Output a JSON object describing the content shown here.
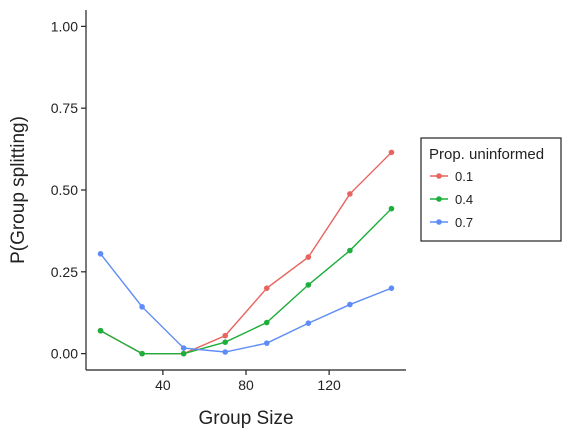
{
  "chart_data": {
    "type": "line",
    "xlabel": "Group Size",
    "ylabel": "P(Group splitting)",
    "xlim": [
      3,
      157
    ],
    "ylim": [
      -0.05,
      1.05
    ],
    "x_ticks": [
      40,
      80,
      120
    ],
    "y_ticks": [
      0.0,
      0.25,
      0.5,
      0.75,
      1.0
    ],
    "y_tick_labels": [
      "0.00",
      "0.25",
      "0.50",
      "0.75",
      "1.00"
    ],
    "x": [
      10,
      30,
      50,
      70,
      90,
      110,
      130,
      150
    ],
    "legend": {
      "title": "Prop. uninformed",
      "placement": "right"
    },
    "series": [
      {
        "name": "0.1",
        "color": "#E8645F",
        "values": [
          0.07,
          0.0,
          0.0,
          0.055,
          0.2,
          0.295,
          0.488,
          0.615
        ]
      },
      {
        "name": "0.4",
        "color": "#1DAE3B",
        "values": [
          0.07,
          0.0,
          0.0,
          0.035,
          0.095,
          0.21,
          0.315,
          0.443
        ]
      },
      {
        "name": "0.7",
        "color": "#5D8CF7",
        "values": [
          0.305,
          0.143,
          0.017,
          0.005,
          0.032,
          0.093,
          0.15,
          0.2
        ]
      }
    ]
  }
}
